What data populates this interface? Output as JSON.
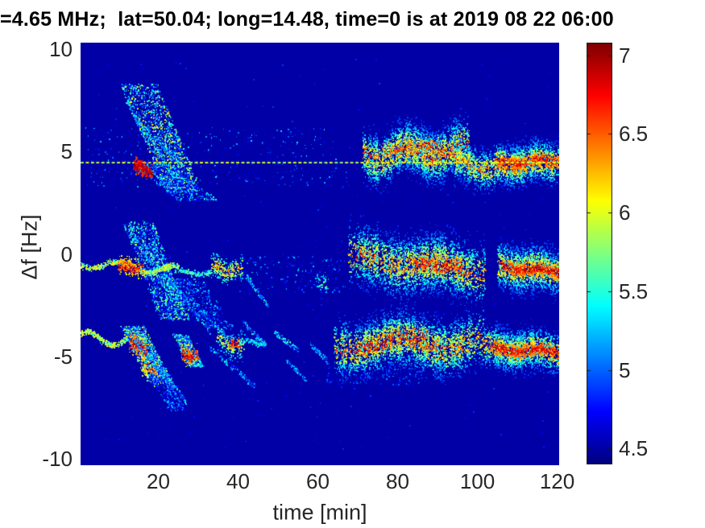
{
  "figure": {
    "background": "#ffffff",
    "text_color": "#262626",
    "title_color": "#000000"
  },
  "chart_data": {
    "type": "heatmap",
    "subtype": "doppler-spectrogram",
    "title": "=4.65 MHz;  lat=50.04; long=14.48, time=0 is at 2019 08 22 06:00",
    "xlabel": "time [min]",
    "ylabel": "Δf [Hz]",
    "xlim": [
      0.5,
      120.5
    ],
    "ylim": [
      -10.3,
      10.3
    ],
    "grid": false,
    "legend": "none",
    "colormap": "jet",
    "background_value": 4.5,
    "xticks": [
      {
        "v": 20,
        "label": "20"
      },
      {
        "v": 40,
        "label": "40"
      },
      {
        "v": 60,
        "label": "60"
      },
      {
        "v": 80,
        "label": "80"
      },
      {
        "v": 100,
        "label": "100"
      },
      {
        "v": 120,
        "label": "120"
      }
    ],
    "yticks": [
      {
        "v": 10,
        "label": "10"
      },
      {
        "v": 5,
        "label": "5"
      },
      {
        "v": 0,
        "label": "0"
      },
      {
        "v": -5,
        "label": "-5"
      },
      {
        "v": -10,
        "label": "-10"
      }
    ],
    "colorbar": {
      "min": 4.4,
      "max": 7.08,
      "ticks": [
        {
          "v": 4.5,
          "label": "4.5"
        },
        {
          "v": 5,
          "label": "5"
        },
        {
          "v": 5.5,
          "label": "5.5"
        },
        {
          "v": 6,
          "label": "6"
        },
        {
          "v": 6.5,
          "label": "6.5"
        },
        {
          "v": 7,
          "label": "7"
        }
      ]
    },
    "reference_line": {
      "f": 4.45,
      "t0": 0.5,
      "t1": 120.5,
      "value": 5.9,
      "style": "dashed"
    },
    "features": [
      {
        "mode": "specks",
        "t0": 1,
        "t1": 120,
        "f0": -9.5,
        "f1": 9.5,
        "n": 700,
        "v0": 4.55,
        "v1": 4.9
      },
      {
        "mode": "specks",
        "t0": 2,
        "t1": 68,
        "f0": 3.3,
        "f1": 6.2,
        "n": 420,
        "v0": 4.6,
        "v1": 5.35
      },
      {
        "mode": "specks",
        "t0": 40,
        "t1": 67,
        "f0": -1.9,
        "f1": -0.1,
        "n": 230,
        "v0": 4.6,
        "v1": 5.3
      },
      {
        "mode": "specks",
        "t0": 62,
        "t1": 86,
        "f0": -6.4,
        "f1": -5.3,
        "n": 200,
        "v0": 4.6,
        "v1": 5.2
      },
      {
        "mode": "cloud",
        "t0": 11,
        "t1": 28,
        "f0": -3.2,
        "f1": 1.6,
        "n": 2400,
        "v0": 4.65,
        "v1": 5.9
      },
      {
        "mode": "cloud",
        "t0": 24,
        "t1": 39,
        "f0": -3.6,
        "f1": -1.2,
        "n": 650,
        "v0": 4.6,
        "v1": 5.4
      },
      {
        "mode": "diag",
        "t0": 13,
        "f0": 1.2,
        "t1": 22,
        "f1": -1.8,
        "n": 130,
        "v0": 4.9,
        "v1": 5.8,
        "w": 0.15
      },
      {
        "mode": "diag",
        "t0": 16,
        "f0": 0.6,
        "t1": 26,
        "f1": -2.6,
        "n": 140,
        "v0": 4.9,
        "v1": 5.9,
        "w": 0.15
      },
      {
        "mode": "diag",
        "t0": 19,
        "f0": -0.2,
        "t1": 30,
        "f1": -3.2,
        "n": 130,
        "v0": 4.8,
        "v1": 5.7,
        "w": 0.15
      },
      {
        "mode": "diag",
        "t0": 22,
        "f0": -1.0,
        "t1": 33,
        "f1": -3.8,
        "n": 110,
        "v0": 4.8,
        "v1": 5.5,
        "w": 0.15
      },
      {
        "mode": "diag",
        "t0": 42,
        "f0": -1.1,
        "t1": 47.5,
        "f1": -2.5,
        "n": 90,
        "v0": 4.8,
        "v1": 5.6,
        "w": 0.12
      },
      {
        "mode": "line",
        "t0": 0.5,
        "t1": 25,
        "c0": -0.45,
        "c1": -0.8,
        "amp": 0.22,
        "period": 14,
        "phase": 3.6,
        "spread": 0.07,
        "n": 620,
        "v0": 5.3,
        "v1": 6.25
      },
      {
        "mode": "blob",
        "t0": 9.5,
        "t1": 16.5,
        "c0": -0.6,
        "c1": -0.68,
        "amp": 0.06,
        "period": 6,
        "phase": 0,
        "spread": 0.2,
        "n": 480,
        "v0": 6.0,
        "v1": 7.05
      },
      {
        "mode": "blob",
        "t0": 33,
        "t1": 41,
        "c0": -0.65,
        "c1": -0.8,
        "amp": 0.15,
        "period": 7,
        "phase": 1,
        "spread": 0.28,
        "n": 620,
        "v0": 5.2,
        "v1": 6.6
      },
      {
        "mode": "line",
        "t0": 24,
        "t1": 33,
        "c0": -0.85,
        "c1": -0.95,
        "amp": 0.05,
        "period": 8,
        "phase": 0,
        "spread": 0.06,
        "n": 150,
        "v0": 5.0,
        "v1": 5.8
      },
      {
        "mode": "blob",
        "t0": 59.5,
        "t1": 62.5,
        "c0": -1.35,
        "c1": -1.5,
        "amp": 0,
        "period": 9,
        "phase": 0,
        "spread": 0.22,
        "n": 90,
        "v0": 5.1,
        "v1": 5.9
      },
      {
        "mode": "blob",
        "t0": 67.5,
        "t1": 102,
        "c0": -0.15,
        "c1": -0.8,
        "amp": 0.18,
        "period": 19,
        "phase": 0.4,
        "spread": 0.72,
        "n": 6200,
        "v0": 4.8,
        "v1": 6.7
      },
      {
        "mode": "blob",
        "t0": 84,
        "t1": 96,
        "c0": -0.5,
        "c1": -0.62,
        "amp": 0.08,
        "period": 9,
        "phase": 0,
        "spread": 0.2,
        "n": 430,
        "v0": 6.25,
        "v1": 7.05
      },
      {
        "mode": "blob",
        "t0": 105,
        "t1": 120.5,
        "c0": -0.6,
        "c1": -0.85,
        "amp": 0.1,
        "period": 11,
        "phase": 2,
        "spread": 0.55,
        "n": 3300,
        "v0": 4.8,
        "v1": 6.8
      },
      {
        "mode": "blob",
        "t0": 106,
        "t1": 120.5,
        "c0": -0.65,
        "c1": -0.85,
        "amp": 0.08,
        "period": 11,
        "phase": 2,
        "spread": 0.14,
        "n": 780,
        "v0": 6.3,
        "v1": 7.08
      },
      {
        "mode": "line",
        "t0": 0.5,
        "t1": 17,
        "c0": -4.05,
        "c1": -4.3,
        "amp": 0.28,
        "period": 12,
        "phase": 0.6,
        "spread": 0.07,
        "n": 460,
        "v0": 5.4,
        "v1": 6.2
      },
      {
        "mode": "cloud",
        "t0": 10.5,
        "t1": 23.5,
        "f0": -6.3,
        "f1": -3.5,
        "n": 2200,
        "v0": 4.75,
        "v1": 6.15
      },
      {
        "mode": "blob",
        "t0": 12.8,
        "t1": 17.2,
        "c0": -4.3,
        "c1": -4.75,
        "amp": 0.08,
        "period": 5,
        "phase": 0,
        "spread": 0.26,
        "n": 380,
        "v0": 6.2,
        "v1": 7.05
      },
      {
        "mode": "blob",
        "t0": 15.5,
        "t1": 20.5,
        "c0": -5.45,
        "c1": -5.7,
        "amp": 0.1,
        "period": 6,
        "phase": 1,
        "spread": 0.28,
        "n": 320,
        "v0": 5.8,
        "v1": 6.65
      },
      {
        "mode": "cloud",
        "t0": 17,
        "t1": 27,
        "f0": -7.6,
        "f1": -5.8,
        "n": 480,
        "v0": 4.6,
        "v1": 5.3
      },
      {
        "mode": "cloud",
        "t0": 23.5,
        "t1": 31.5,
        "f0": -5.5,
        "f1": -3.9,
        "n": 850,
        "v0": 4.8,
        "v1": 5.8
      },
      {
        "mode": "blob",
        "t0": 25.5,
        "t1": 30.5,
        "c0": -4.85,
        "c1": -5.0,
        "amp": 0.08,
        "period": 5,
        "phase": 2,
        "spread": 0.24,
        "n": 300,
        "v0": 6.0,
        "v1": 7.0
      },
      {
        "mode": "blob",
        "t0": 34.5,
        "t1": 41.5,
        "c0": -4.3,
        "c1": -4.45,
        "amp": 0.2,
        "period": 7,
        "phase": 0.6,
        "spread": 0.33,
        "n": 560,
        "v0": 5.0,
        "v1": 6.3
      },
      {
        "mode": "blob",
        "t0": 37.5,
        "t1": 40.5,
        "c0": -4.35,
        "c1": -4.45,
        "amp": 0.05,
        "period": 5,
        "phase": 0,
        "spread": 0.14,
        "n": 130,
        "v0": 6.2,
        "v1": 7.0
      },
      {
        "mode": "diag",
        "t0": 14,
        "f0": -4.2,
        "t1": 24,
        "f1": -6.6,
        "n": 140,
        "v0": 4.8,
        "v1": 5.6,
        "w": 0.14
      },
      {
        "mode": "diag",
        "t0": 18,
        "f0": -4.8,
        "t1": 27,
        "f1": -7.2,
        "n": 120,
        "v0": 4.8,
        "v1": 5.5,
        "w": 0.14
      },
      {
        "mode": "diag",
        "t0": 28,
        "f0": -2.2,
        "t1": 38,
        "f1": -4.2,
        "n": 110,
        "v0": 4.75,
        "v1": 5.45,
        "w": 0.15
      },
      {
        "mode": "diag",
        "t0": 33,
        "f0": -4.6,
        "t1": 44,
        "f1": -6.4,
        "n": 120,
        "v0": 4.75,
        "v1": 5.5,
        "w": 0.15
      },
      {
        "mode": "diag",
        "t0": 41,
        "f0": -3.3,
        "t1": 47,
        "f1": -4.5,
        "n": 90,
        "v0": 4.8,
        "v1": 5.6,
        "w": 0.13
      },
      {
        "mode": "diag",
        "t0": 49,
        "f0": -3.8,
        "t1": 55,
        "f1": -4.7,
        "n": 90,
        "v0": 4.85,
        "v1": 5.7,
        "w": 0.12
      },
      {
        "mode": "diag",
        "t0": 52,
        "f0": -5.2,
        "t1": 57,
        "f1": -6.1,
        "n": 70,
        "v0": 4.8,
        "v1": 5.5,
        "w": 0.12
      },
      {
        "mode": "diag",
        "t0": 58,
        "f0": -4.4,
        "t1": 63,
        "f1": -5.3,
        "n": 80,
        "v0": 4.8,
        "v1": 5.6,
        "w": 0.12
      },
      {
        "mode": "line",
        "t0": 41,
        "t1": 47,
        "c0": -4.25,
        "c1": -4.35,
        "amp": 0.06,
        "period": 6,
        "phase": 0,
        "spread": 0.06,
        "n": 100,
        "v0": 4.95,
        "v1": 5.6
      },
      {
        "mode": "blob",
        "t0": 64,
        "t1": 101.5,
        "c0": -4.45,
        "c1": -4.3,
        "amp": 0.28,
        "period": 23,
        "phase": 3.4,
        "spread": 0.68,
        "n": 6400,
        "v0": 4.8,
        "v1": 6.7
      },
      {
        "mode": "blob",
        "t0": 66,
        "t1": 89,
        "c0": -4.4,
        "c1": -4.15,
        "amp": 0.22,
        "period": 23,
        "phase": 3.4,
        "spread": 0.28,
        "n": 500,
        "v0": 6.1,
        "v1": 7.02
      },
      {
        "mode": "blob",
        "t0": 101.5,
        "t1": 120.5,
        "c0": -4.55,
        "c1": -4.75,
        "amp": 0.12,
        "period": 12,
        "phase": 1,
        "spread": 0.5,
        "n": 3500,
        "v0": 4.8,
        "v1": 6.8
      },
      {
        "mode": "blob",
        "t0": 103,
        "t1": 120.5,
        "c0": -4.6,
        "c1": -4.78,
        "amp": 0.1,
        "period": 12,
        "phase": 1,
        "spread": 0.15,
        "n": 800,
        "v0": 6.3,
        "v1": 7.05
      },
      {
        "mode": "cloud",
        "t0": 10.5,
        "t1": 31,
        "f0": 3.0,
        "f1": 8.3,
        "n": 2500,
        "v0": 4.7,
        "v1": 6.2
      },
      {
        "mode": "diag",
        "t0": 12,
        "f0": 7.5,
        "t1": 18,
        "f1": 5.2,
        "n": 100,
        "v0": 4.9,
        "v1": 5.8,
        "w": 0.14
      },
      {
        "mode": "diag",
        "t0": 14,
        "f0": 6.8,
        "t1": 21,
        "f1": 4.7,
        "n": 110,
        "v0": 4.9,
        "v1": 5.9,
        "w": 0.14
      },
      {
        "mode": "diag",
        "t0": 17,
        "f0": 6.1,
        "t1": 25,
        "f1": 4.5,
        "n": 100,
        "v0": 4.85,
        "v1": 5.7,
        "w": 0.14
      },
      {
        "mode": "cloud",
        "t0": 13,
        "t1": 35,
        "f0": 2.6,
        "f1": 4.4,
        "n": 900,
        "v0": 4.65,
        "v1": 5.6
      },
      {
        "mode": "blob",
        "t0": 71,
        "t1": 98,
        "c0": 4.85,
        "c1": 5.1,
        "amp": 0.32,
        "period": 14,
        "phase": 2.8,
        "spread": 0.62,
        "n": 5200,
        "v0": 4.8,
        "v1": 6.75
      },
      {
        "mode": "blob",
        "t0": 76,
        "t1": 96,
        "c0": 5.2,
        "c1": 5.05,
        "amp": 0.18,
        "period": 14,
        "phase": 2.8,
        "spread": 0.22,
        "n": 380,
        "v0": 6.1,
        "v1": 6.95
      },
      {
        "mode": "blob",
        "t0": 94,
        "t1": 104.5,
        "c0": 4.6,
        "c1": 3.95,
        "amp": 0.1,
        "period": 8,
        "phase": 0,
        "spread": 0.5,
        "n": 1500,
        "v0": 4.8,
        "v1": 6.6
      },
      {
        "mode": "blob",
        "t0": 104,
        "t1": 120.5,
        "c0": 4.3,
        "c1": 4.55,
        "amp": 0.12,
        "period": 10,
        "phase": 1.2,
        "spread": 0.5,
        "n": 3300,
        "v0": 4.8,
        "v1": 6.9
      },
      {
        "mode": "blob",
        "t0": 105,
        "t1": 120.5,
        "c0": 4.45,
        "c1": 4.6,
        "amp": 0.1,
        "period": 10,
        "phase": 1.2,
        "spread": 0.15,
        "n": 700,
        "v0": 6.2,
        "v1": 7.0
      },
      {
        "mode": "dashline",
        "f": 4.45,
        "t0": 0.5,
        "t1": 120.5,
        "v": 5.9,
        "dash": 0.8,
        "gap": 0.5
      },
      {
        "mode": "blob",
        "t0": 13.8,
        "t1": 18.6,
        "c0": 4.35,
        "c1": 3.95,
        "amp": 0.05,
        "period": 5,
        "phase": 0,
        "spread": 0.17,
        "n": 450,
        "v0": 6.55,
        "v1": 7.08
      }
    ]
  }
}
